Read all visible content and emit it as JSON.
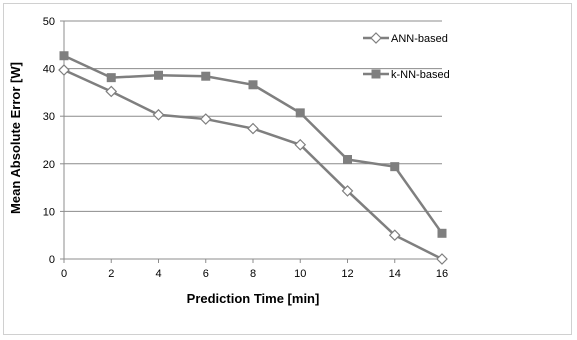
{
  "chart_data": {
    "type": "line",
    "title": "",
    "xlabel": "Prediction Time [min]",
    "ylabel": "Mean Absolute Error [W]",
    "x": [
      0,
      2,
      4,
      6,
      8,
      10,
      12,
      14,
      16
    ],
    "xlim": [
      0,
      16
    ],
    "ylim": [
      0,
      50
    ],
    "xticks": [
      "0",
      "2",
      "4",
      "6",
      "8",
      "10",
      "12",
      "14",
      "16"
    ],
    "yticks": [
      "0",
      "10",
      "20",
      "30",
      "40",
      "50"
    ],
    "grid": "horizontal",
    "legend_position": "right",
    "series": [
      {
        "name": "ANN-based",
        "marker": "open-diamond",
        "color": "#7f7f7f",
        "values": [
          39.7,
          35.2,
          30.3,
          29.4,
          27.4,
          24.0,
          14.3,
          5.0,
          0.0
        ]
      },
      {
        "name": "k-NN-based",
        "marker": "filled-square",
        "color": "#7f7f7f",
        "values": [
          42.7,
          38.1,
          38.6,
          38.4,
          36.6,
          30.7,
          20.9,
          19.4,
          5.4
        ]
      }
    ]
  }
}
